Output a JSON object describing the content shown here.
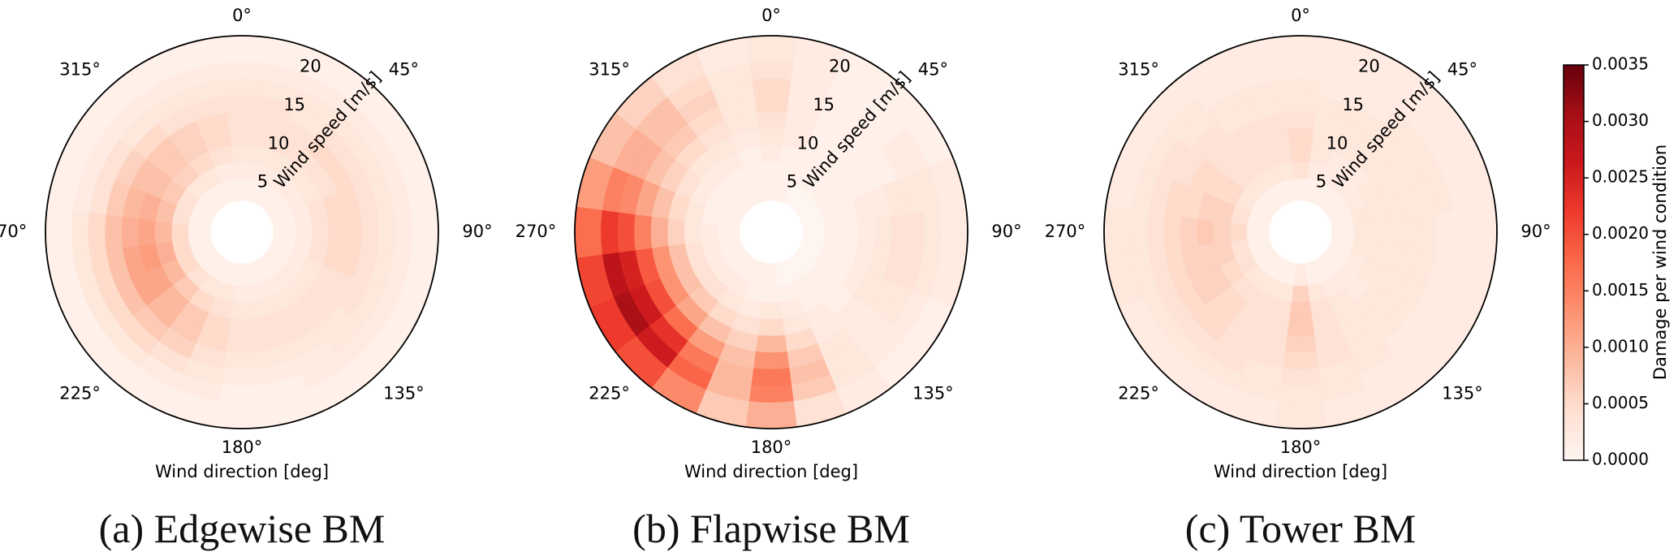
{
  "chart_data": {
    "type": "heatmap",
    "projection": "polar",
    "theta_zero": "north",
    "theta_direction": "clockwise",
    "theta_ticks": [
      "0°",
      "45°",
      "90°",
      "135°",
      "180°",
      "225°",
      "270°",
      "315°"
    ],
    "r_ticks": [
      "5",
      "10",
      "15",
      "20"
    ],
    "xlabel": "Wind direction [deg]",
    "rlabel": "Wind speed [m/s]",
    "direction_bins_deg": [
      0,
      15,
      30,
      45,
      60,
      75,
      90,
      105,
      120,
      135,
      150,
      165,
      180,
      195,
      210,
      225,
      240,
      255,
      270,
      285,
      300,
      315,
      330,
      345
    ],
    "speed_bin_edges": [
      2.3,
      5,
      7,
      9,
      11,
      13,
      15,
      17,
      19,
      22.1
    ],
    "colorbar": {
      "label": "Damage per wind condition",
      "colormap": "Reds",
      "range": [
        0,
        0.0035
      ],
      "ticks": [
        "0.0000",
        "0.0005",
        "0.0010",
        "0.0015",
        "0.0020",
        "0.0025",
        "0.0030",
        "0.0035"
      ],
      "colors": [
        "#fff5f0",
        "#fee0d2",
        "#fcbba1",
        "#fc9272",
        "#fb6a4a",
        "#ef3b2c",
        "#cb181d",
        "#a50f15",
        "#67000d"
      ]
    },
    "panels": [
      {
        "caption": "(a) Edgewise BM",
        "values": [
          [
            0.0001,
            0.0002,
            0.0003,
            0.0004,
            0.0004,
            0.0004,
            0.0003,
            0.0002,
            0.0001
          ],
          [
            0.0001,
            0.0002,
            0.0003,
            0.0004,
            0.0004,
            0.0004,
            0.0003,
            0.0002,
            0.0001
          ],
          [
            0.0001,
            0.0002,
            0.0003,
            0.0004,
            0.0004,
            0.0003,
            0.0003,
            0.0002,
            0.0001
          ],
          [
            0.0001,
            0.0002,
            0.0003,
            0.0004,
            0.0005,
            0.0004,
            0.0003,
            0.0002,
            0.0001
          ],
          [
            0.0001,
            0.0002,
            0.0003,
            0.0004,
            0.0005,
            0.0004,
            0.0003,
            0.0002,
            0.0001
          ],
          [
            0.0001,
            0.0002,
            0.0004,
            0.0005,
            0.0005,
            0.0004,
            0.0003,
            0.0002,
            0.0001
          ],
          [
            0.0001,
            0.0002,
            0.0004,
            0.0005,
            0.0005,
            0.0004,
            0.0003,
            0.0002,
            0.0001
          ],
          [
            0.0001,
            0.0002,
            0.0004,
            0.0005,
            0.0005,
            0.0004,
            0.0003,
            0.0002,
            0.0001
          ],
          [
            0.0001,
            0.0002,
            0.0003,
            0.0004,
            0.0004,
            0.0004,
            0.0003,
            0.0002,
            0.0001
          ],
          [
            0.0001,
            0.0002,
            0.0003,
            0.0004,
            0.0004,
            0.0003,
            0.0003,
            0.0002,
            0.0001
          ],
          [
            0.0001,
            0.0002,
            0.0003,
            0.0004,
            0.0004,
            0.0003,
            0.0002,
            0.0002,
            0.0001
          ],
          [
            0.0001,
            0.0002,
            0.0003,
            0.0004,
            0.0004,
            0.0003,
            0.0002,
            0.0001,
            0.0001
          ],
          [
            0.0001,
            0.0002,
            0.0003,
            0.0004,
            0.0004,
            0.0003,
            0.0002,
            0.0001,
            0.0001
          ],
          [
            0.0001,
            0.0003,
            0.0004,
            0.0005,
            0.0005,
            0.0004,
            0.0003,
            0.0002,
            0.0001
          ],
          [
            0.0001,
            0.0003,
            0.0005,
            0.0007,
            0.0007,
            0.0006,
            0.0004,
            0.0002,
            0.0001
          ],
          [
            0.0001,
            0.0004,
            0.0007,
            0.0009,
            0.0009,
            0.0007,
            0.0005,
            0.0003,
            0.0001
          ],
          [
            0.0001,
            0.0005,
            0.0009,
            0.0011,
            0.0011,
            0.0008,
            0.0005,
            0.0003,
            0.0001
          ],
          [
            0.0001,
            0.0005,
            0.001,
            0.0012,
            0.0011,
            0.0008,
            0.0005,
            0.0003,
            0.0001
          ],
          [
            0.0001,
            0.0005,
            0.0009,
            0.0011,
            0.001,
            0.0008,
            0.0005,
            0.0003,
            0.0001
          ],
          [
            0.0001,
            0.0004,
            0.0008,
            0.001,
            0.0009,
            0.0007,
            0.0004,
            0.0002,
            0.0001
          ],
          [
            0.0001,
            0.0004,
            0.0007,
            0.0008,
            0.0008,
            0.0006,
            0.0004,
            0.0002,
            0.0001
          ],
          [
            0.0001,
            0.0003,
            0.0006,
            0.0007,
            0.0007,
            0.0005,
            0.0003,
            0.0002,
            0.0001
          ],
          [
            0.0001,
            0.0003,
            0.0005,
            0.0006,
            0.0006,
            0.0004,
            0.0003,
            0.0002,
            0.0001
          ],
          [
            0.0001,
            0.0002,
            0.0004,
            0.0005,
            0.0005,
            0.0004,
            0.0003,
            0.0002,
            0.0001
          ]
        ]
      },
      {
        "caption": "(b) Flapwise BM",
        "values": [
          [
            0.0001,
            0.0001,
            0.0002,
            0.0003,
            0.0004,
            0.0005,
            0.0005,
            0.0004,
            0.0003
          ],
          [
            0.0001,
            0.0001,
            0.0001,
            0.0002,
            0.0002,
            0.0002,
            0.0002,
            0.0002,
            0.0002
          ],
          [
            0.0,
            0.0001,
            0.0001,
            0.0001,
            0.0001,
            0.0001,
            0.0001,
            0.0001,
            0.0001
          ],
          [
            0.0,
            0.0001,
            0.0001,
            0.0001,
            0.0001,
            0.0001,
            0.0001,
            0.0001,
            0.0001
          ],
          [
            0.0,
            0.0001,
            0.0001,
            0.0001,
            0.0001,
            0.0001,
            0.0002,
            0.0002,
            0.0001
          ],
          [
            0.0,
            0.0001,
            0.0001,
            0.0002,
            0.0002,
            0.0003,
            0.0003,
            0.0003,
            0.0002
          ],
          [
            0.0,
            0.0001,
            0.0001,
            0.0002,
            0.0003,
            0.0004,
            0.0004,
            0.0003,
            0.0002
          ],
          [
            0.0,
            0.0001,
            0.0001,
            0.0002,
            0.0003,
            0.0004,
            0.0004,
            0.0003,
            0.0002
          ],
          [
            0.0,
            0.0001,
            0.0001,
            0.0002,
            0.0003,
            0.0003,
            0.0003,
            0.0002,
            0.0001
          ],
          [
            0.0,
            0.0001,
            0.0001,
            0.0001,
            0.0002,
            0.0002,
            0.0002,
            0.0002,
            0.0001
          ],
          [
            0.0,
            0.0001,
            0.0001,
            0.0002,
            0.0002,
            0.0003,
            0.0003,
            0.0003,
            0.0002
          ],
          [
            0.0,
            0.0001,
            0.0002,
            0.0003,
            0.0005,
            0.0007,
            0.0008,
            0.0007,
            0.0004
          ],
          [
            0.0001,
            0.0001,
            0.0003,
            0.0005,
            0.0009,
            0.0013,
            0.0016,
            0.0015,
            0.001
          ],
          [
            0.0001,
            0.0001,
            0.0002,
            0.0004,
            0.0006,
            0.0008,
            0.0009,
            0.0009,
            0.0007
          ],
          [
            0.0001,
            0.0002,
            0.0003,
            0.0005,
            0.0008,
            0.0012,
            0.0016,
            0.0018,
            0.0014
          ],
          [
            0.0001,
            0.0002,
            0.0004,
            0.0007,
            0.0011,
            0.0017,
            0.0023,
            0.0026,
            0.002
          ],
          [
            0.0001,
            0.0002,
            0.0004,
            0.0008,
            0.0013,
            0.002,
            0.0026,
            0.003,
            0.0022
          ],
          [
            0.0001,
            0.0002,
            0.0004,
            0.0008,
            0.0013,
            0.0019,
            0.0025,
            0.0028,
            0.0021
          ],
          [
            0.0001,
            0.0002,
            0.0003,
            0.0006,
            0.001,
            0.0015,
            0.002,
            0.0022,
            0.0017
          ],
          [
            0.0001,
            0.0001,
            0.0003,
            0.0005,
            0.0008,
            0.0011,
            0.0014,
            0.0015,
            0.0012
          ],
          [
            0.0001,
            0.0001,
            0.0002,
            0.0004,
            0.0006,
            0.0008,
            0.001,
            0.001,
            0.0008
          ],
          [
            0.0001,
            0.0001,
            0.0002,
            0.0003,
            0.0005,
            0.0007,
            0.0008,
            0.0008,
            0.0006
          ],
          [
            0.0001,
            0.0001,
            0.0002,
            0.0003,
            0.0004,
            0.0005,
            0.0006,
            0.0005,
            0.0004
          ],
          [
            0.0001,
            0.0001,
            0.0001,
            0.0002,
            0.0003,
            0.0003,
            0.0003,
            0.0003,
            0.0002
          ]
        ]
      },
      {
        "caption": "(c) Tower BM",
        "values": [
          [
            0.0001,
            0.0004,
            0.0005,
            0.0005,
            0.0004,
            0.0003,
            0.0003,
            0.0002,
            0.0002
          ],
          [
            0.0001,
            0.0002,
            0.0003,
            0.0003,
            0.0003,
            0.0003,
            0.0002,
            0.0002,
            0.0002
          ],
          [
            0.0001,
            0.0002,
            0.0002,
            0.0003,
            0.0003,
            0.0003,
            0.0002,
            0.0002,
            0.0002
          ],
          [
            0.0001,
            0.0002,
            0.0002,
            0.0003,
            0.0003,
            0.0003,
            0.0003,
            0.0002,
            0.0002
          ],
          [
            0.0001,
            0.0002,
            0.0003,
            0.0003,
            0.0003,
            0.0003,
            0.0003,
            0.0002,
            0.0002
          ],
          [
            0.0001,
            0.0003,
            0.0003,
            0.0003,
            0.0003,
            0.0003,
            0.0003,
            0.0002,
            0.0002
          ],
          [
            0.0001,
            0.0003,
            0.0003,
            0.0003,
            0.0003,
            0.0003,
            0.0002,
            0.0002,
            0.0002
          ],
          [
            0.0001,
            0.0003,
            0.0003,
            0.0003,
            0.0003,
            0.0003,
            0.0002,
            0.0002,
            0.0002
          ],
          [
            0.0001,
            0.0002,
            0.0003,
            0.0003,
            0.0003,
            0.0003,
            0.0002,
            0.0002,
            0.0002
          ],
          [
            0.0001,
            0.0002,
            0.0002,
            0.0003,
            0.0003,
            0.0003,
            0.0002,
            0.0002,
            0.0002
          ],
          [
            0.0001,
            0.0002,
            0.0003,
            0.0003,
            0.0003,
            0.0003,
            0.0003,
            0.0002,
            0.0002
          ],
          [
            0.0001,
            0.0003,
            0.0004,
            0.0004,
            0.0004,
            0.0004,
            0.0003,
            0.0003,
            0.0002
          ],
          [
            0.0002,
            0.0006,
            0.0007,
            0.0007,
            0.0006,
            0.0005,
            0.0004,
            0.0003,
            0.0003
          ],
          [
            0.0001,
            0.0003,
            0.0004,
            0.0004,
            0.0004,
            0.0004,
            0.0003,
            0.0003,
            0.0002
          ],
          [
            0.0001,
            0.0003,
            0.0004,
            0.0004,
            0.0004,
            0.0004,
            0.0004,
            0.0003,
            0.0002
          ],
          [
            0.0001,
            0.0003,
            0.0004,
            0.0005,
            0.0005,
            0.0005,
            0.0004,
            0.0003,
            0.0002
          ],
          [
            0.0001,
            0.0004,
            0.0005,
            0.0006,
            0.0006,
            0.0005,
            0.0004,
            0.0003,
            0.0002
          ],
          [
            0.0001,
            0.0004,
            0.0006,
            0.0006,
            0.0006,
            0.0005,
            0.0004,
            0.0003,
            0.0003
          ],
          [
            0.0001,
            0.0005,
            0.0006,
            0.0007,
            0.0006,
            0.0005,
            0.0004,
            0.0003,
            0.0003
          ],
          [
            0.0001,
            0.0004,
            0.0006,
            0.0006,
            0.0005,
            0.0005,
            0.0004,
            0.0003,
            0.0002
          ],
          [
            0.0001,
            0.0003,
            0.0005,
            0.0005,
            0.0005,
            0.0004,
            0.0004,
            0.0003,
            0.0002
          ],
          [
            0.0001,
            0.0003,
            0.0004,
            0.0004,
            0.0004,
            0.0004,
            0.0003,
            0.0003,
            0.0002
          ],
          [
            0.0001,
            0.0003,
            0.0004,
            0.0004,
            0.0004,
            0.0003,
            0.0003,
            0.0002,
            0.0002
          ],
          [
            0.0001,
            0.0003,
            0.0004,
            0.0004,
            0.0004,
            0.0003,
            0.0003,
            0.0002,
            0.0002
          ]
        ]
      }
    ]
  }
}
